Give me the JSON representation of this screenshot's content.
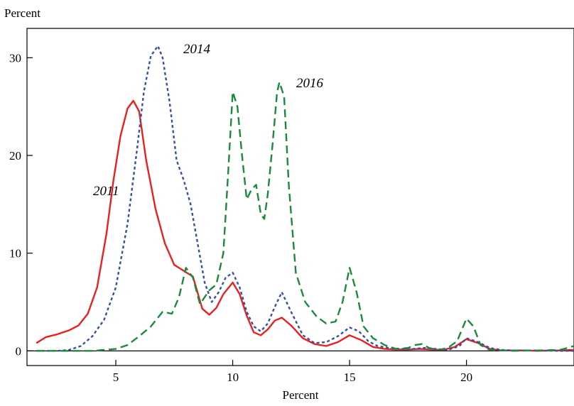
{
  "chart_data": {
    "type": "line",
    "title": "",
    "ylabel": "Percent",
    "xlabel": "Percent",
    "xlim": [
      1.2,
      24.6
    ],
    "ylim": [
      -1.5,
      33
    ],
    "xticks": [
      5,
      10,
      15,
      20
    ],
    "yticks": [
      0,
      10,
      20,
      30
    ],
    "grid": false,
    "legend": "inline labels",
    "series": [
      {
        "name": "2011",
        "color": "#e8211f",
        "dash": "solid",
        "x": [
          1.6,
          2.0,
          2.5,
          3.0,
          3.4,
          3.8,
          4.2,
          4.6,
          4.9,
          5.2,
          5.5,
          5.75,
          6.0,
          6.3,
          6.7,
          7.1,
          7.5,
          7.9,
          8.3,
          8.7,
          9.0,
          9.3,
          9.6,
          10.0,
          10.3,
          10.6,
          10.9,
          11.2,
          11.5,
          11.8,
          12.1,
          12.5,
          13.0,
          13.5,
          14.0,
          14.5,
          15.0,
          15.5,
          16.0,
          16.5,
          17.0,
          17.5,
          18.0,
          18.5,
          19.0,
          19.5,
          20.0,
          20.5,
          21.0,
          21.5,
          22.0,
          22.5,
          23.0,
          24.0,
          24.6
        ],
        "y": [
          0.8,
          1.4,
          1.7,
          2.1,
          2.6,
          3.8,
          6.5,
          12.0,
          17.5,
          22.0,
          24.8,
          25.6,
          24.5,
          19.5,
          14.5,
          11.0,
          8.8,
          8.2,
          7.6,
          4.3,
          3.7,
          4.4,
          5.8,
          7.0,
          5.8,
          3.6,
          1.9,
          1.6,
          2.2,
          3.1,
          3.4,
          2.6,
          1.3,
          0.7,
          0.5,
          0.9,
          1.6,
          1.1,
          0.4,
          0.2,
          0.15,
          0.15,
          0.2,
          0.15,
          0.1,
          0.4,
          1.2,
          0.8,
          0.2,
          0.05,
          0.05,
          0.05,
          0.0,
          0.05,
          0.1
        ]
      },
      {
        "name": "2014",
        "color": "#3850a4",
        "dash": "short-dash",
        "x": [
          1.6,
          2.5,
          3.0,
          3.5,
          4.0,
          4.5,
          5.0,
          5.5,
          5.9,
          6.2,
          6.5,
          6.8,
          7.0,
          7.3,
          7.6,
          7.9,
          8.2,
          8.5,
          8.8,
          9.1,
          9.4,
          9.7,
          10.0,
          10.3,
          10.6,
          10.9,
          11.2,
          11.5,
          11.8,
          12.1,
          12.5,
          13.0,
          13.5,
          14.0,
          14.5,
          15.0,
          15.4,
          15.8,
          16.2,
          16.7,
          17.2,
          17.7,
          18.2,
          18.7,
          19.2,
          19.7,
          20.0,
          20.5,
          21.0,
          21.5,
          22.0,
          23.0,
          24.0,
          24.6
        ],
        "y": [
          0.0,
          0.0,
          0.1,
          0.5,
          1.5,
          3.2,
          6.5,
          13.0,
          20.5,
          26.5,
          30.2,
          31.2,
          30.0,
          25.5,
          19.5,
          17.5,
          15.0,
          11.0,
          7.0,
          5.0,
          6.0,
          7.5,
          8.0,
          6.5,
          4.0,
          2.5,
          2.0,
          2.8,
          4.5,
          6.0,
          4.0,
          1.6,
          0.8,
          0.9,
          1.5,
          2.4,
          2.0,
          1.0,
          0.5,
          0.3,
          0.2,
          0.2,
          0.3,
          0.2,
          0.1,
          0.5,
          1.3,
          0.9,
          0.3,
          0.1,
          0.05,
          0.05,
          0.0,
          0.0
        ]
      },
      {
        "name": "2016",
        "color": "#1a8a3c",
        "dash": "long-dash",
        "x": [
          1.6,
          3.0,
          4.0,
          5.0,
          5.5,
          6.0,
          6.5,
          7.0,
          7.4,
          7.7,
          8.0,
          8.3,
          8.6,
          9.0,
          9.3,
          9.6,
          9.8,
          10.0,
          10.2,
          10.4,
          10.6,
          10.8,
          11.0,
          11.2,
          11.35,
          11.5,
          11.7,
          11.9,
          12.0,
          12.2,
          12.4,
          12.7,
          13.1,
          13.6,
          14.0,
          14.4,
          14.7,
          15.0,
          15.3,
          15.6,
          16.0,
          16.5,
          17.0,
          17.5,
          17.8,
          18.1,
          18.4,
          18.8,
          19.2,
          19.6,
          20.0,
          20.3,
          20.6,
          21.0,
          22.0,
          23.0,
          24.0,
          24.6
        ],
        "y": [
          0.0,
          0.0,
          0.0,
          0.2,
          0.6,
          1.5,
          2.5,
          4.0,
          3.8,
          5.5,
          8.5,
          7.5,
          4.8,
          6.2,
          6.8,
          10.0,
          18.0,
          26.5,
          25.0,
          20.0,
          15.5,
          16.5,
          17.0,
          14.0,
          13.5,
          16.0,
          21.0,
          26.5,
          27.5,
          26.0,
          17.0,
          8.0,
          5.0,
          3.5,
          2.8,
          3.0,
          5.0,
          8.5,
          6.0,
          2.5,
          1.3,
          0.6,
          0.2,
          0.3,
          0.6,
          0.7,
          0.3,
          0.1,
          0.3,
          1.0,
          3.3,
          2.5,
          0.6,
          0.1,
          0.0,
          0.05,
          0.1,
          0.5
        ]
      }
    ],
    "annotations": [
      {
        "series": "2011",
        "text": "2011"
      },
      {
        "series": "2014",
        "text": "2014"
      },
      {
        "series": "2016",
        "text": "2016"
      }
    ]
  }
}
